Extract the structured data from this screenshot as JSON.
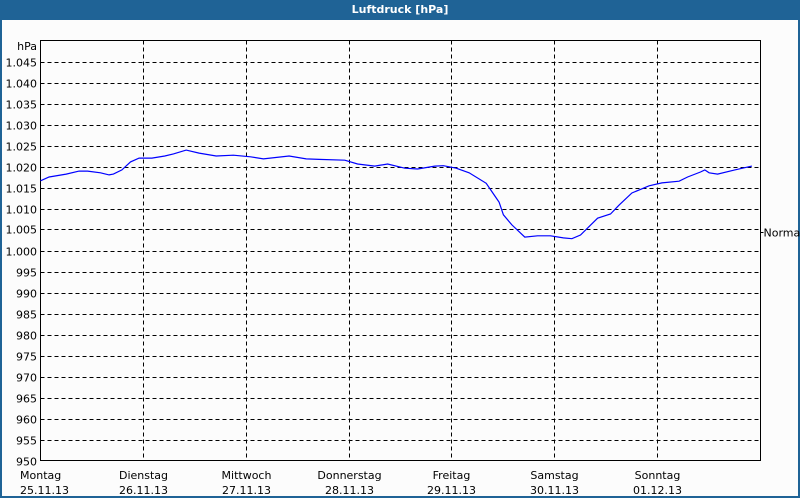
{
  "window": {
    "title": "Luftdruck [hPa]"
  },
  "colors": {
    "titlebar": "#1f6396",
    "line": "#0000ff",
    "grid": "#000000"
  },
  "chart_data": {
    "type": "line",
    "title": "Luftdruck [hPa]",
    "ylabel": "hPa",
    "ylim": [
      950,
      1050
    ],
    "yticks": [
      950,
      955,
      960,
      965,
      970,
      975,
      980,
      985,
      990,
      995,
      1000,
      1005,
      1010,
      1015,
      1020,
      1025,
      1030,
      1035,
      1040,
      1045
    ],
    "ytick_labels": [
      "950",
      "955",
      "960",
      "965",
      "970",
      "975",
      "980",
      "985",
      "990",
      "995",
      "1.000",
      "1.005",
      "1.010",
      "1.015",
      "1.020",
      "1.025",
      "1.030",
      "1.035",
      "1.040",
      "1.045"
    ],
    "xlim": [
      "2013-11-25 00:00",
      "2013-12-02 00:00"
    ],
    "xticks": [
      {
        "day": "Montag",
        "date": "25.11.13"
      },
      {
        "day": "Dienstag",
        "date": "26.11.13"
      },
      {
        "day": "Mittwoch",
        "date": "27.11.13"
      },
      {
        "day": "Donnerstag",
        "date": "28.11.13"
      },
      {
        "day": "Freitag",
        "date": "29.11.13"
      },
      {
        "day": "Samstag",
        "date": "30.11.13"
      },
      {
        "day": "Sonntag",
        "date": "01.12.13"
      }
    ],
    "reference": {
      "label": "Normal",
      "value": 1004.5
    },
    "grid": true,
    "series": [
      {
        "color": "#0000ff",
        "points": [
          [
            "2013-11-25 00:00",
            1016.6
          ],
          [
            "2013-11-25 02:00",
            1017.5
          ],
          [
            "2013-11-25 06:00",
            1018.2
          ],
          [
            "2013-11-25 09:00",
            1018.9
          ],
          [
            "2013-11-25 11:00",
            1018.9
          ],
          [
            "2013-11-25 14:00",
            1018.5
          ],
          [
            "2013-11-25 16:00",
            1018.0
          ],
          [
            "2013-11-25 17:00",
            1018.2
          ],
          [
            "2013-11-25 19:00",
            1019.2
          ],
          [
            "2013-11-25 21:00",
            1021.1
          ],
          [
            "2013-11-25 23:00",
            1022.0
          ],
          [
            "2013-11-26 02:00",
            1022.0
          ],
          [
            "2013-11-26 05:00",
            1022.5
          ],
          [
            "2013-11-26 07:00",
            1023.0
          ],
          [
            "2013-11-26 10:00",
            1023.9
          ],
          [
            "2013-11-26 13:00",
            1023.2
          ],
          [
            "2013-11-26 17:00",
            1022.5
          ],
          [
            "2013-11-26 21:00",
            1022.7
          ],
          [
            "2013-11-27 01:00",
            1022.3
          ],
          [
            "2013-11-27 04:00",
            1021.8
          ],
          [
            "2013-11-27 10:00",
            1022.5
          ],
          [
            "2013-11-27 14:00",
            1021.8
          ],
          [
            "2013-11-27 17:00",
            1021.7
          ],
          [
            "2013-11-27 23:00",
            1021.5
          ],
          [
            "2013-11-28 02:00",
            1020.6
          ],
          [
            "2013-11-28 06:00",
            1020.1
          ],
          [
            "2013-11-28 09:00",
            1020.6
          ],
          [
            "2013-11-28 13:00",
            1019.6
          ],
          [
            "2013-11-28 16:00",
            1019.4
          ],
          [
            "2013-11-28 20:00",
            1020.1
          ],
          [
            "2013-11-28 22:00",
            1020.2
          ],
          [
            "2013-11-29 01:00",
            1019.6
          ],
          [
            "2013-11-29 04:00",
            1018.5
          ],
          [
            "2013-11-29 08:00",
            1016.0
          ],
          [
            "2013-11-29 10:00",
            1013.0
          ],
          [
            "2013-11-29 11:00",
            1011.5
          ],
          [
            "2013-11-29 12:00",
            1008.5
          ],
          [
            "2013-11-29 14:00",
            1006.1
          ],
          [
            "2013-11-29 17:00",
            1003.2
          ],
          [
            "2013-11-29 20:00",
            1003.5
          ],
          [
            "2013-11-29 23:00",
            1003.5
          ],
          [
            "2013-11-30 02:00",
            1003.0
          ],
          [
            "2013-11-30 04:00",
            1002.8
          ],
          [
            "2013-11-30 06:00",
            1003.7
          ],
          [
            "2013-11-30 10:00",
            1007.7
          ],
          [
            "2013-11-30 13:00",
            1008.7
          ],
          [
            "2013-11-30 15:00",
            1010.8
          ],
          [
            "2013-11-30 18:00",
            1013.7
          ],
          [
            "2013-11-30 22:00",
            1015.4
          ],
          [
            "2013-12-01 01:00",
            1016.1
          ],
          [
            "2013-12-01 05:00",
            1016.5
          ],
          [
            "2013-12-01 07:00",
            1017.5
          ],
          [
            "2013-12-01 10:00",
            1018.7
          ],
          [
            "2013-12-01 11:00",
            1019.2
          ],
          [
            "2013-12-01 12:00",
            1018.5
          ],
          [
            "2013-12-01 14:00",
            1018.2
          ],
          [
            "2013-12-01 18:00",
            1019.2
          ],
          [
            "2013-12-01 22:00",
            1020.1
          ]
        ]
      }
    ]
  }
}
